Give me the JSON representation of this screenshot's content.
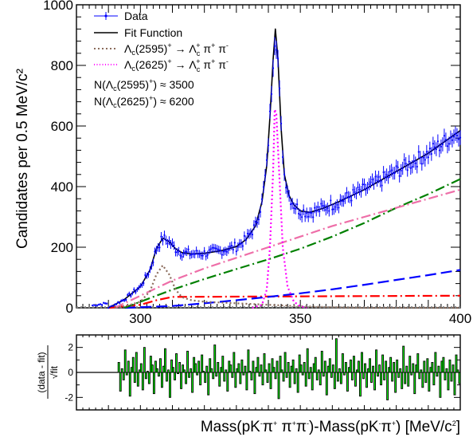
{
  "chart_data": [
    {
      "type": "line",
      "ylabel": "Candidates per 0.5 MeV/c²",
      "xlim": [
        280,
        400
      ],
      "ylim": [
        0,
        1000
      ],
      "x_ticks": [
        300,
        350,
        400
      ],
      "y_ticks": [
        0,
        200,
        400,
        600,
        800,
        1000
      ],
      "legend": [
        {
          "label": "Data",
          "color": "#0000ff",
          "style": "points"
        },
        {
          "label": "Fit Function",
          "color": "#000000",
          "style": "solid"
        },
        {
          "label_parts": [
            "Λ",
            "c",
            "(2595)",
            "+",
            " → Λ",
            "c",
            "+",
            " π",
            "+",
            " π",
            "-"
          ],
          "label": "Λc(2595)+ → Λc+ π+ π-",
          "color": "#8b6c5c",
          "style": "dotted"
        },
        {
          "label_parts": [
            "Λ",
            "c",
            "(2625)",
            "+",
            " → Λ",
            "c",
            "+",
            " π",
            "+",
            " π",
            "-"
          ],
          "label": "Λc(2625)+ → Λc+ π+ π-",
          "color": "#ff00ff",
          "style": "dotted"
        }
      ],
      "legend_position": "top-left",
      "annotations": [
        {
          "parts": [
            "N(Λ",
            "c",
            "(2595)",
            "+",
            ") ≈ 3500"
          ],
          "text": "N(Λc(2595)+) ≈ 3500"
        },
        {
          "parts": [
            "N(Λ",
            "c",
            "(2625)",
            "+",
            ") ≈ 6200"
          ],
          "text": "N(Λc(2625)+) ≈ 6200"
        }
      ],
      "series": [
        {
          "name": "Fit Function",
          "color": "#000000",
          "x": [
            290,
            295,
            300,
            303,
            305,
            307,
            309,
            311,
            313,
            316,
            320,
            325,
            330,
            333,
            336,
            338,
            339.5,
            340.5,
            341.5,
            342.2,
            343,
            344,
            345,
            346.5,
            348,
            350,
            353,
            357,
            362,
            370,
            380,
            390,
            400
          ],
          "y": [
            0,
            28,
            70,
            125,
            195,
            230,
            218,
            195,
            182,
            178,
            180,
            188,
            202,
            225,
            270,
            350,
            470,
            630,
            820,
            920,
            820,
            590,
            440,
            370,
            340,
            320,
            315,
            328,
            350,
            390,
            450,
            510,
            585
          ]
        },
        {
          "name": "",
          "color": "#8b6c5c",
          "style": "dotted",
          "x": [
            292,
            296,
            300,
            303,
            305,
            307,
            309,
            311,
            313,
            316,
            320,
            330,
            340,
            350,
            360,
            370,
            380,
            400
          ],
          "y": [
            0,
            8,
            20,
            55,
            110,
            140,
            110,
            60,
            35,
            25,
            20,
            15,
            10,
            5,
            2,
            0,
            0,
            0
          ]
        },
        {
          "name": "",
          "color": "#ff00ff",
          "style": "dotted",
          "x": [
            335,
            338,
            339.5,
            340.5,
            341.5,
            342,
            342.5,
            343.5,
            344.5,
            346,
            348,
            350,
            352
          ],
          "y": [
            0,
            10,
            60,
            200,
            450,
            655,
            640,
            420,
            200,
            70,
            20,
            5,
            0
          ]
        },
        {
          "name": "",
          "color": "#ee6ea8",
          "style": "dashdot",
          "x": [
            292,
            300,
            310,
            320,
            330,
            340,
            350,
            360,
            370,
            380,
            390,
            400
          ],
          "y": [
            0,
            40,
            90,
            130,
            165,
            200,
            235,
            270,
            300,
            330,
            360,
            390
          ]
        },
        {
          "name": "",
          "color": "#008000",
          "style": "dashdot",
          "x": [
            295,
            300,
            310,
            320,
            330,
            340,
            350,
            360,
            370,
            380,
            390,
            400
          ],
          "y": [
            0,
            20,
            60,
            95,
            128,
            160,
            195,
            235,
            280,
            330,
            375,
            425
          ]
        },
        {
          "name": "",
          "color": "#0000ff",
          "style": "dashed",
          "x": [
            295,
            310,
            320,
            330,
            340,
            350,
            360,
            370,
            380,
            390,
            400
          ],
          "y": [
            0,
            6,
            15,
            25,
            36,
            48,
            61,
            76,
            92,
            108,
            125
          ]
        },
        {
          "name": "",
          "color": "#ff0000",
          "style": "dashdot",
          "x": [
            290,
            300,
            305,
            310,
            400
          ],
          "y": [
            0,
            10,
            25,
            36,
            40
          ]
        },
        {
          "name": "",
          "color": "#808080",
          "style": "dotted",
          "x": [
            280,
            400
          ],
          "y": [
            2,
            2
          ]
        }
      ]
    },
    {
      "type": "bar",
      "ylabel_num": "(data - fit)",
      "ylabel_den": "√fit",
      "xlabel_parts": [
        "Mass(pK",
        "-",
        "π",
        "+",
        " π",
        "+",
        "π",
        "-",
        ")-Mass(pK",
        "-",
        "π",
        "+",
        ") [MeV/c",
        "2",
        "]"
      ],
      "xlabel": "Mass(pK-π+ π+π-)-Mass(pK-π+) [MeV/c2]",
      "xlim": [
        280,
        400
      ],
      "ylim": [
        -3,
        3
      ],
      "y_ticks": [
        -2,
        0,
        2
      ],
      "bar_start": 293,
      "bin_width": 0.5,
      "values": [
        0.8,
        -1.5,
        0.3,
        -0.6,
        1.8,
        -0.2,
        0.9,
        -1.9,
        0.4,
        1.2,
        -0.8,
        1.6,
        -1.1,
        0.2,
        0.7,
        -1.4,
        2.0,
        -0.5,
        0.1,
        -0.9,
        1.3,
        0.6,
        -1.7,
        0.9,
        0.3,
        -0.3,
        1.1,
        -1.2,
        0.5,
        1.9,
        -0.7,
        0.2,
        -2.0,
        1.0,
        0.4,
        -0.6,
        1.5,
        -0.1,
        0.8,
        -1.3,
        0.6,
        0.2,
        -0.9,
        1.7,
        -0.4,
        0.3,
        -1.6,
        1.2,
        0.7,
        -0.2,
        0.9,
        -1.0,
        1.4,
        0.1,
        -0.8,
        0.5,
        -1.8,
        1.1,
        0.3,
        -0.5,
        2.2,
        -0.3,
        0.8,
        -1.1,
        0.4,
        1.3,
        -0.7,
        0.2,
        -1.5,
        0.9,
        0.6,
        -0.4,
        1.6,
        -1.2,
        0.3,
        0.7,
        -0.9,
        1.0,
        -0.2,
        0.5,
        -1.4,
        1.8,
        0.1,
        -0.6,
        0.9,
        -1.7,
        0.4,
        1.2,
        -0.3,
        0.6,
        -1.0,
        1.5,
        0.2,
        -0.8,
        0.7,
        -1.3,
        1.1,
        0.4,
        -0.5,
        0.9,
        -2.1,
        1.3,
        0.2,
        -0.7,
        1.6,
        -0.4,
        0.8,
        -1.2,
        0.5,
        1.0,
        -0.9,
        0.3,
        -1.6,
        1.4,
        0.6,
        -0.2,
        0.8,
        -1.1,
        1.9,
        -0.5,
        0.4,
        -1.4,
        0.7,
        1.2,
        -0.6,
        0.2,
        -1.0,
        1.7,
        -0.3,
        0.9,
        -1.8,
        0.5,
        1.1,
        -0.4,
        0.6,
        -1.3,
        2.7,
        -0.7,
        0.3,
        -0.9,
        1.5,
        -0.2,
        0.8,
        -1.5,
        0.4,
        1.0,
        -0.6,
        1.3,
        -1.1,
        0.2,
        0.9,
        -1.9,
        1.6,
        -0.5,
        0.7,
        -1.2,
        0.3,
        1.1,
        -0.8,
        0.5,
        -1.4,
        1.8,
        -0.3,
        0.6,
        -1.0,
        1.4,
        -0.6,
        0.9,
        -2.2,
        0.4,
        1.2,
        -0.7,
        0.8,
        -1.6,
        1.0,
        -0.4,
        0.3,
        -1.3,
        2.1,
        -0.9,
        0.5,
        -1.1,
        1.3,
        -0.2,
        0.7,
        -1.7,
        0.6,
        1.5,
        -0.5,
        0.2,
        -1.2,
        0.9,
        -0.8,
        1.1,
        -1.5,
        0.4,
        0.8,
        -1.0,
        1.6,
        -0.3,
        0.5,
        -2.0,
        0.9,
        1.2,
        -0.6,
        0.3,
        -1.4,
        1.0,
        -0.7,
        0.6,
        -1.8,
        1.4,
        0.2,
        -0.9,
        0.7,
        -1.1,
        1.3,
        -0.4,
        0.8,
        -1.6,
        0.5,
        1.9,
        -0.5,
        0.3,
        -1.3,
        0.6,
        -2.1
      ],
      "fill_color": "#00ff00"
    }
  ]
}
